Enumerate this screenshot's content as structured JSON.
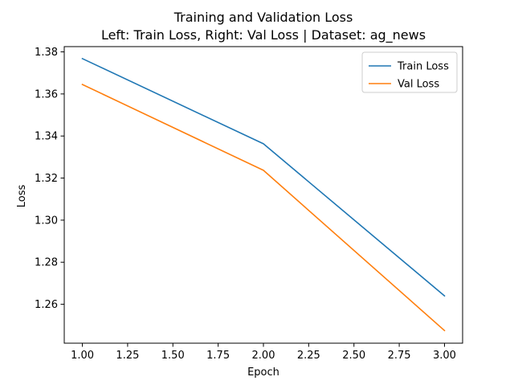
{
  "chart_data": {
    "type": "line",
    "title": "Training and Validation Loss",
    "subtitle": "Left: Train Loss, Right: Val Loss | Dataset: ag_news",
    "xlabel": "Epoch",
    "ylabel": "Loss",
    "xlim": [
      0.9,
      3.1
    ],
    "ylim": [
      1.2415,
      1.3825
    ],
    "xticks": [
      1.0,
      1.25,
      1.5,
      1.75,
      2.0,
      2.25,
      2.5,
      2.75,
      3.0
    ],
    "xtick_labels": [
      "1.00",
      "1.25",
      "1.50",
      "1.75",
      "2.00",
      "2.25",
      "2.50",
      "2.75",
      "3.00"
    ],
    "yticks": [
      1.26,
      1.28,
      1.3,
      1.32,
      1.34,
      1.36,
      1.38
    ],
    "ytick_labels": [
      "1.26",
      "1.28",
      "1.30",
      "1.32",
      "1.34",
      "1.36",
      "1.38"
    ],
    "grid": false,
    "legend_position": "top-right",
    "x": [
      1,
      2,
      3
    ],
    "series": [
      {
        "name": "Train Loss",
        "values": [
          1.3768,
          1.3363,
          1.264
        ],
        "color": "#1f77b4"
      },
      {
        "name": "Val Loss",
        "values": [
          1.3645,
          1.3237,
          1.2475
        ],
        "color": "#ff7f0e"
      }
    ]
  }
}
